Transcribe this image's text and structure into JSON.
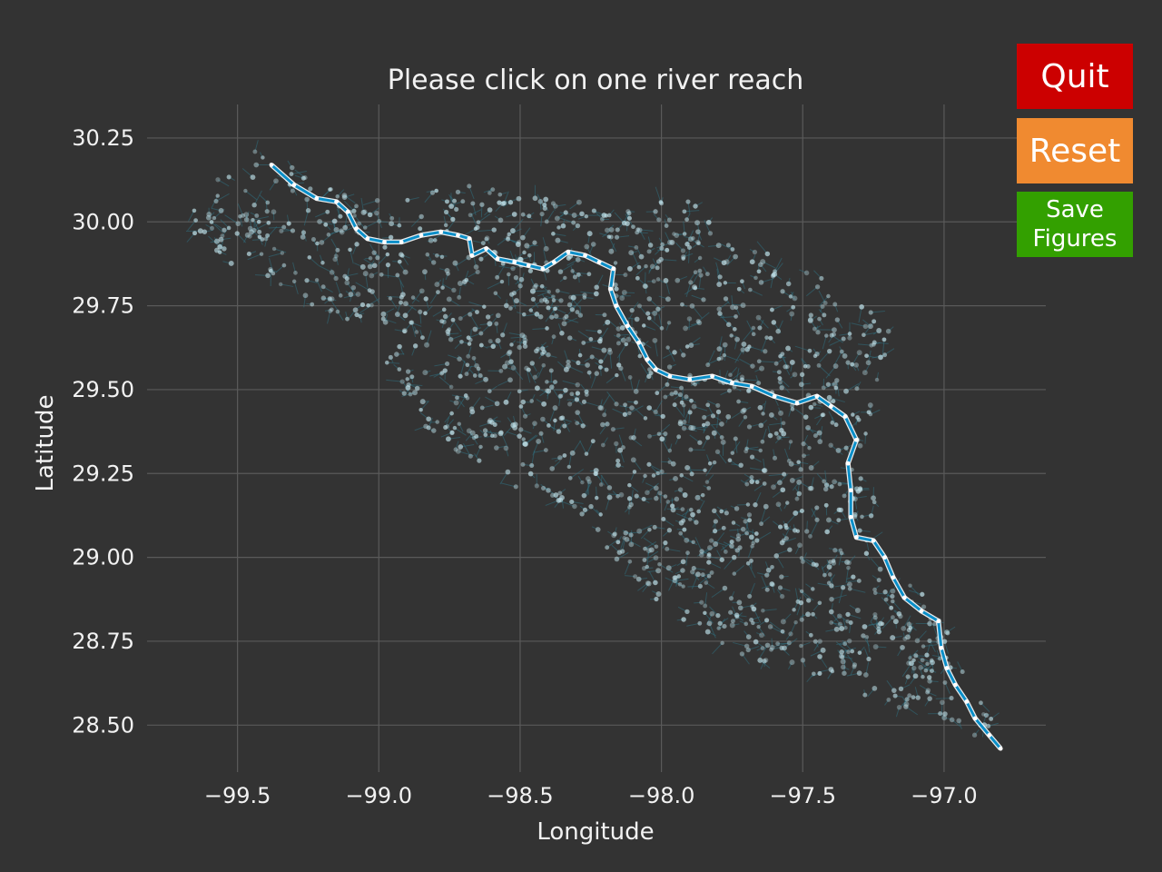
{
  "buttons": {
    "quit": "Quit",
    "reset": "Reset",
    "save": "Save\nFigures"
  },
  "colors": {
    "background": "#333333",
    "grid": "#5a5a5a",
    "text": "#f2f2f2",
    "network": "#2f6f80",
    "nodes": "#bcdde5",
    "main_river": "#0a8fc9",
    "quit": "#cc0000",
    "reset": "#f08a30",
    "save": "#33a000"
  },
  "chart_data": {
    "type": "scatter",
    "title": "Please click on one river reach",
    "xlabel": "Longitude",
    "ylabel": "Latitude",
    "xlim": [
      -99.82,
      -96.64
    ],
    "ylim": [
      28.36,
      30.35
    ],
    "xticks": [
      -99.5,
      -99.0,
      -98.5,
      -98.0,
      -97.5,
      -97.0
    ],
    "xtick_labels": [
      "−99.5",
      "−99.0",
      "−98.5",
      "−98.0",
      "−97.5",
      "−97.0"
    ],
    "yticks": [
      28.5,
      28.75,
      29.0,
      29.25,
      29.5,
      29.75,
      30.0,
      30.25
    ],
    "ytick_labels": [
      "28.50",
      "28.75",
      "29.00",
      "29.25",
      "29.50",
      "29.75",
      "30.00",
      "30.25"
    ],
    "grid": true,
    "basin_outline": [
      [
        -99.45,
        30.22
      ],
      [
        -99.2,
        30.12
      ],
      [
        -98.95,
        30.07
      ],
      [
        -98.65,
        30.12
      ],
      [
        -98.4,
        30.09
      ],
      [
        -98.2,
        30.04
      ],
      [
        -97.9,
        30.08
      ],
      [
        -97.75,
        29.95
      ],
      [
        -97.6,
        29.9
      ],
      [
        -97.4,
        29.82
      ],
      [
        -97.3,
        29.78
      ],
      [
        -97.18,
        29.7
      ],
      [
        -97.22,
        29.55
      ],
      [
        -97.28,
        29.35
      ],
      [
        -97.22,
        29.12
      ],
      [
        -97.15,
        28.98
      ],
      [
        -97.0,
        28.8
      ],
      [
        -96.9,
        28.62
      ],
      [
        -96.78,
        28.44
      ],
      [
        -96.95,
        28.48
      ],
      [
        -97.15,
        28.55
      ],
      [
        -97.45,
        28.63
      ],
      [
        -97.75,
        28.72
      ],
      [
        -97.95,
        28.82
      ],
      [
        -98.15,
        28.98
      ],
      [
        -98.3,
        29.13
      ],
      [
        -98.55,
        29.22
      ],
      [
        -98.8,
        29.35
      ],
      [
        -98.95,
        29.52
      ],
      [
        -99.05,
        29.65
      ],
      [
        -99.3,
        29.78
      ],
      [
        -99.5,
        29.85
      ],
      [
        -99.68,
        29.98
      ],
      [
        -99.62,
        30.1
      ],
      [
        -99.45,
        30.22
      ]
    ],
    "main_river": [
      [
        -99.38,
        30.17
      ],
      [
        -99.3,
        30.11
      ],
      [
        -99.22,
        30.07
      ],
      [
        -99.15,
        30.06
      ],
      [
        -99.11,
        30.03
      ],
      [
        -99.08,
        29.98
      ],
      [
        -99.04,
        29.95
      ],
      [
        -98.98,
        29.94
      ],
      [
        -98.92,
        29.94
      ],
      [
        -98.85,
        29.96
      ],
      [
        -98.78,
        29.97
      ],
      [
        -98.72,
        29.96
      ],
      [
        -98.68,
        29.95
      ],
      [
        -98.67,
        29.9
      ],
      [
        -98.62,
        29.92
      ],
      [
        -98.58,
        29.89
      ],
      [
        -98.52,
        29.88
      ],
      [
        -98.47,
        29.87
      ],
      [
        -98.42,
        29.86
      ],
      [
        -98.38,
        29.88
      ],
      [
        -98.33,
        29.91
      ],
      [
        -98.27,
        29.9
      ],
      [
        -98.22,
        29.88
      ],
      [
        -98.17,
        29.86
      ],
      [
        -98.18,
        29.8
      ],
      [
        -98.16,
        29.75
      ],
      [
        -98.12,
        29.69
      ],
      [
        -98.08,
        29.64
      ],
      [
        -98.05,
        29.59
      ],
      [
        -98.02,
        29.56
      ],
      [
        -97.97,
        29.54
      ],
      [
        -97.9,
        29.53
      ],
      [
        -97.82,
        29.54
      ],
      [
        -97.75,
        29.52
      ],
      [
        -97.68,
        29.51
      ],
      [
        -97.6,
        29.48
      ],
      [
        -97.52,
        29.46
      ],
      [
        -97.45,
        29.48
      ],
      [
        -97.4,
        29.45
      ],
      [
        -97.35,
        29.42
      ],
      [
        -97.31,
        29.35
      ],
      [
        -97.34,
        29.28
      ],
      [
        -97.33,
        29.2
      ],
      [
        -97.33,
        29.12
      ],
      [
        -97.31,
        29.06
      ],
      [
        -97.25,
        29.05
      ],
      [
        -97.21,
        29.0
      ],
      [
        -97.18,
        28.94
      ],
      [
        -97.14,
        28.88
      ],
      [
        -97.08,
        28.84
      ],
      [
        -97.02,
        28.81
      ],
      [
        -97.01,
        28.73
      ],
      [
        -96.99,
        28.67
      ],
      [
        -96.96,
        28.62
      ],
      [
        -96.92,
        28.57
      ],
      [
        -96.89,
        28.52
      ],
      [
        -96.84,
        28.47
      ],
      [
        -96.8,
        28.43
      ]
    ]
  }
}
